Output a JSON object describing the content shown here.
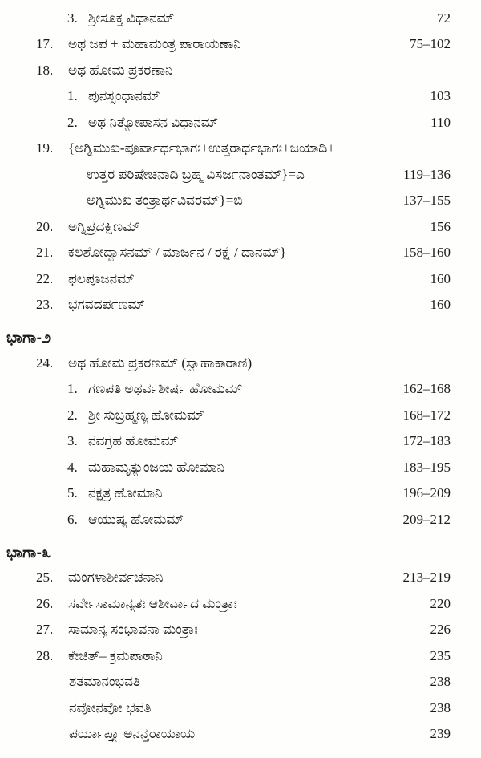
{
  "document": {
    "background": "#fefefc",
    "text_color": "#1b1b1b",
    "language": "Kannada",
    "kind": "table-of-contents"
  },
  "toc": {
    "rows": [
      {
        "type": "entry",
        "indent": "sub",
        "num": "3.",
        "title": "ಶ್ರೀಸೂಕ್ತ ವಿಧಾನಮ್",
        "pages": "72"
      },
      {
        "type": "entry",
        "indent": "main",
        "num": "17.",
        "title": "ಅಥ ಜಪ + ಮಹಾಮಂತ್ರ ಪಾರಾಯಣಾನಿ",
        "pages": "75–102"
      },
      {
        "type": "entry",
        "indent": "main",
        "num": "18.",
        "title": "ಅಥ ಹೋಮ ಪ್ರಕರಣಾನಿ",
        "pages": ""
      },
      {
        "type": "entry",
        "indent": "sub",
        "num": "1.",
        "title": "ಪುನಸ್ಸಂಧಾನಮ್",
        "pages": "103"
      },
      {
        "type": "entry",
        "indent": "sub",
        "num": "2.",
        "title": "ಅಥ ನಿತ್ಯೋಪಾಸನ ವಿಧಾನಮ್",
        "pages": "110"
      },
      {
        "type": "entry",
        "indent": "main",
        "num": "19.",
        "title": "{ಅಗ್ನಿಮುಖ-ಪೂರ್ವಾರ್ಧಭಾಗಃ+ಉತ್ತರಾರ್ಧಭಾಗಃ+ಜಯಾದಿ+",
        "pages": ""
      },
      {
        "type": "entry",
        "indent": "cont",
        "num": "",
        "title": "ಉತ್ತರ ಪರಿಷೇಚನಾದಿ ಬ್ರಹ್ಮ ವಿಸರ್ಜನಾಂತಮ್}=ಎ",
        "pages": "119–136"
      },
      {
        "type": "entry",
        "indent": "cont",
        "num": "",
        "title": "ಅಗ್ನಿಮುಖ ತಂತ್ರಾರ್ಥವಿವರಮ್}=ಬಿ",
        "pages": "137–155"
      },
      {
        "type": "entry",
        "indent": "main",
        "num": "20.",
        "title": "ಅಗ್ನಿಪ್ರದಕ್ಷಿಣಮ್",
        "pages": "156"
      },
      {
        "type": "entry",
        "indent": "main",
        "num": "21.",
        "title": "ಕಲಶೋದ್ವಾಸನಮ್ / ಮಾರ್ಜನ / ರಕ್ಷೆ / ದಾನಮ್}",
        "pages": "158–160"
      },
      {
        "type": "entry",
        "indent": "main",
        "num": "22.",
        "title": "ಫಲಪೂಜನಮ್",
        "pages": "160"
      },
      {
        "type": "entry",
        "indent": "main",
        "num": "23.",
        "title": "ಭಗವದರ್ಪಣಮ್",
        "pages": "160"
      },
      {
        "type": "heading",
        "title": "ಭಾಗಾ-೨"
      },
      {
        "type": "entry",
        "indent": "main",
        "num": "24.",
        "title": "ಅಥ ಹೋಮ ಪ್ರಕರಣಮ್ (ಸ್ವಾಹಾಕಾರಾಣಿ)",
        "pages": ""
      },
      {
        "type": "entry",
        "indent": "sub",
        "num": "1.",
        "title": "ಗಣಪತಿ ಅಥರ್ವಶೀರ್ಷ ಹೋಮಮ್",
        "pages": "162–168"
      },
      {
        "type": "entry",
        "indent": "sub",
        "num": "2.",
        "title": "ಶ್ರೀ ಸುಬ್ರಹ್ಮಣ್ಯ ಹೋಮಮ್",
        "pages": "168–172"
      },
      {
        "type": "entry",
        "indent": "sub",
        "num": "3.",
        "title": "ನವಗ್ರಹ ಹೋಮಮ್",
        "pages": "172–183"
      },
      {
        "type": "entry",
        "indent": "sub",
        "num": "4.",
        "title": "ಮಹಾಮೃತ್ಯುಂಜಯ ಹೋಮಾನಿ",
        "pages": "183–195"
      },
      {
        "type": "entry",
        "indent": "sub",
        "num": "5.",
        "title": "ನಕ್ಷತ್ರ ಹೋಮಾನಿ",
        "pages": "196–209"
      },
      {
        "type": "entry",
        "indent": "sub",
        "num": "6.",
        "title": "ಆಯುಷ್ಯ ಹೋಮಮ್",
        "pages": "209–212"
      },
      {
        "type": "heading",
        "title": "ಭಾಗಾ-೩"
      },
      {
        "type": "entry",
        "indent": "main",
        "num": "25.",
        "title": "ಮಂಗಳಾಶೀರ್ವಚನಾನಿ",
        "pages": "213–219"
      },
      {
        "type": "entry",
        "indent": "main",
        "num": "26.",
        "title": "ಸರ್ವೇಸಾಮಾನ್ಯತಃ ಆಶೀರ್ವಾದ ಮಂತ್ರಾಃ",
        "pages": "220"
      },
      {
        "type": "entry",
        "indent": "main",
        "num": "27.",
        "title": "ಸಾಮಾನ್ಯ ಸಂಭಾವನಾ ಮಂತ್ರಾಃ",
        "pages": "226"
      },
      {
        "type": "entry",
        "indent": "main",
        "num": "28.",
        "title": "ಕೇಚಿತ್– ಕ್ರಮಪಾಠಾನಿ",
        "pages": "235"
      },
      {
        "type": "entry",
        "indent": "subplain",
        "num": "",
        "title": "ಶತಮಾನಂಭವತಿ",
        "pages": "238"
      },
      {
        "type": "entry",
        "indent": "subplain",
        "num": "",
        "title": "ನವೋನವೋ ಭವತಿ",
        "pages": "238"
      },
      {
        "type": "entry",
        "indent": "subplain",
        "num": "",
        "title": "ಪರ್ಯಾಪ್ತ್ಯಾ ಅನನ್ತರಾಯಾಯ",
        "pages": "239"
      }
    ]
  }
}
